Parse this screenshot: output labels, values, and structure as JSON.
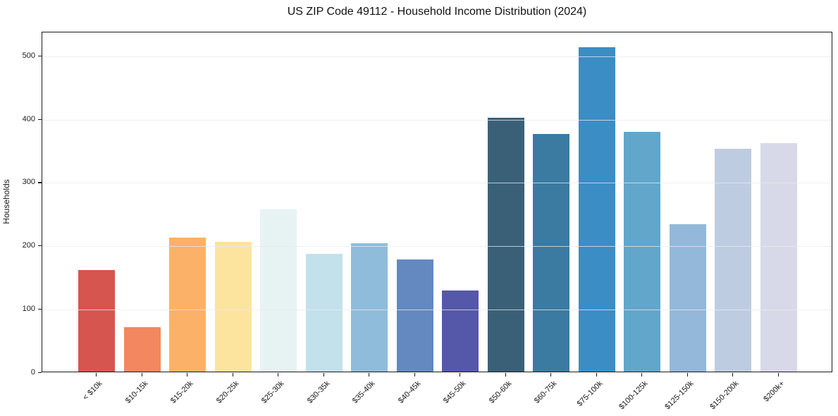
{
  "chart_data": {
    "type": "bar",
    "title": "US ZIP Code 49112 - Household Income Distribution (2024)",
    "xlabel": "",
    "ylabel": "Households",
    "categories": [
      "< $10k",
      "$10-15k",
      "$15-20k",
      "$20-25k",
      "$25-30k",
      "$30-35k",
      "$35-40k",
      "$40-45k",
      "$45-50k",
      "$50-60k",
      "$60-75k",
      "$75-100k",
      "$100-125k",
      "$125-150k",
      "$150-200k",
      "$200k+"
    ],
    "values": [
      160,
      70,
      212,
      205,
      256,
      186,
      202,
      177,
      128,
      401,
      375,
      512,
      378,
      233,
      352,
      361
    ],
    "bar_colors": [
      "#d6554f",
      "#f3875f",
      "#fbb168",
      "#fce49e",
      "#e7f2f3",
      "#c3e1eb",
      "#8fbcdb",
      "#6389c0",
      "#5557a9",
      "#3a6078",
      "#3b7ba1",
      "#3a8ec5",
      "#62a6cb",
      "#93b8da",
      "#becce1",
      "#d7d9e8"
    ],
    "yticks": [
      0,
      100,
      200,
      300,
      400,
      500
    ],
    "ylim": [
      0,
      537.5
    ],
    "grid": "horizontal",
    "grid_color": "#e9e9ee",
    "background": "#ffffff",
    "spine_color": "#1b1b1b",
    "text_color": "#1a1a1a",
    "x_tick_rotation_deg": 45,
    "legend": "none"
  }
}
